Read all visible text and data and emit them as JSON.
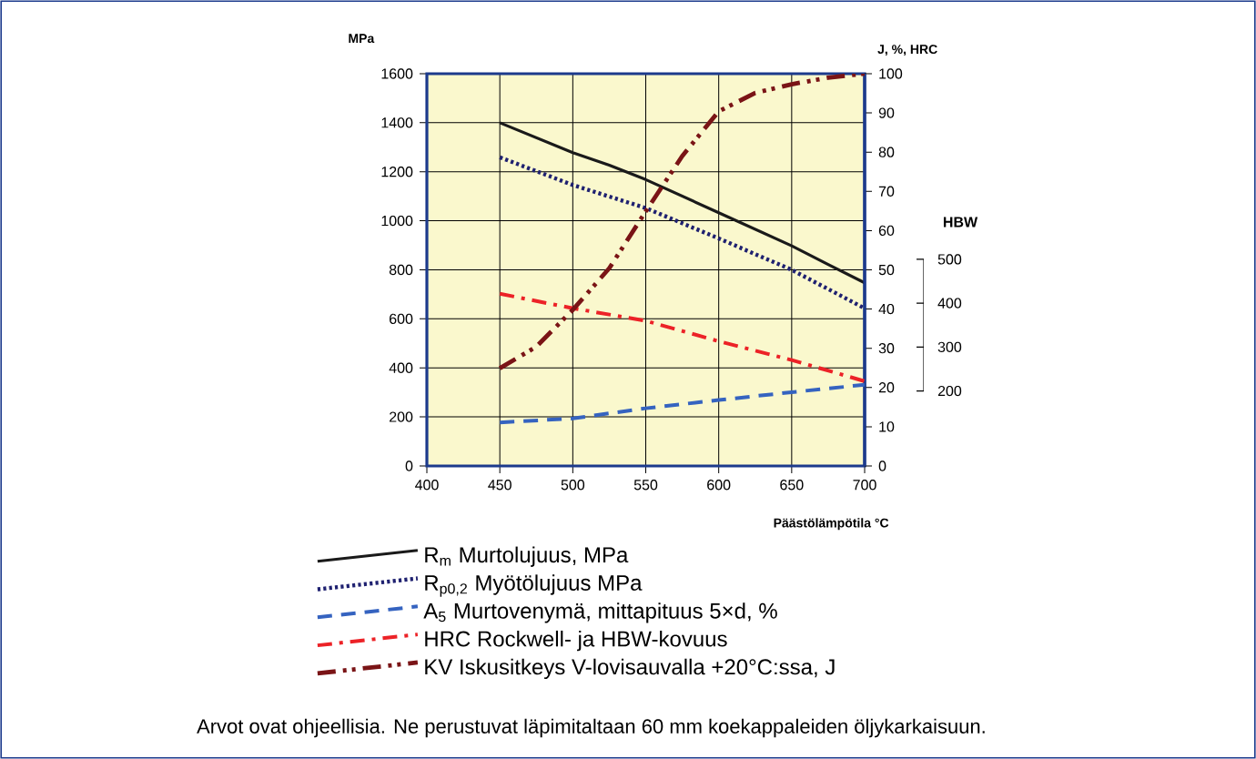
{
  "chart_data": {
    "type": "line",
    "xlabel": "Päästölämpötila °C",
    "ylabel": "MPa",
    "y2label": "J, %, HRC",
    "y3label": "HBW",
    "xlim": [
      400,
      700
    ],
    "xticks": [
      400,
      450,
      500,
      550,
      600,
      650,
      700
    ],
    "ylim": [
      0,
      1600
    ],
    "yticks": [
      0,
      200,
      400,
      600,
      800,
      1000,
      1200,
      1400,
      1600
    ],
    "y2lim": [
      0,
      100
    ],
    "y2ticks": [
      0,
      10,
      20,
      30,
      40,
      50,
      60,
      70,
      80,
      90,
      100
    ],
    "y3lim": [
      29,
      923
    ],
    "y3ticks": [
      200,
      300,
      400,
      500
    ],
    "grid": true,
    "legend": "bottom",
    "marker": "none",
    "series": [
      {
        "name": "R$_{m}$    Murtolujuus, MPa",
        "color": "#1a1a1a",
        "line_style": "solid",
        "x": [
          450,
          500,
          525,
          550,
          600,
          650,
          675,
          700
        ],
        "values": [
          1400,
          1278,
          1227,
          1168,
          1033,
          898,
          822,
          747
        ]
      },
      {
        "name": "R$_{p0,2}$ Myötölujuus MPa",
        "color": "#1f2170",
        "line_style": "dotted",
        "x": [
          450,
          500,
          550,
          600,
          650,
          700
        ],
        "values": [
          1259,
          1146,
          1052,
          928,
          800,
          643
        ]
      },
      {
        "name": "A$_{5}$    Murtovenymä, mittapituus 5×d, %",
        "color": "#3563c0",
        "line_style": "dashed",
        "axis": "y2",
        "x": [
          450,
          500,
          550,
          600,
          650,
          700
        ],
        "values": [
          11.1,
          12.1,
          14.7,
          16.8,
          18.8,
          20.7
        ]
      },
      {
        "name": "HRC Rockwell- ja HBW-kovuus",
        "color": "#ec2227",
        "line_style": "dashdot",
        "axis": "y2",
        "x": [
          450,
          500,
          550,
          600,
          650,
          700
        ],
        "values": [
          43.9,
          40.2,
          37.0,
          31.8,
          27.0,
          21.6
        ]
      },
      {
        "name": "KV    Iskusitkeys V-lovisauvalla +20°C:ssa, J",
        "color": "#7a1416",
        "line_style": "dashdotdot",
        "axis": "y2",
        "x": [
          450,
          475,
          500,
          525,
          550,
          575,
          600,
          625,
          650,
          675,
          700
        ],
        "values": [
          24.9,
          30.4,
          39.8,
          50.4,
          64.9,
          79.0,
          90.4,
          95.1,
          97.3,
          99.0,
          100
        ]
      }
    ],
    "annotations": [
      "Arvot ovat ohjeellisia. Ne perustuvat läpimitaltaan 60 mm koekappaleiden öljykarkaisuun."
    ]
  }
}
